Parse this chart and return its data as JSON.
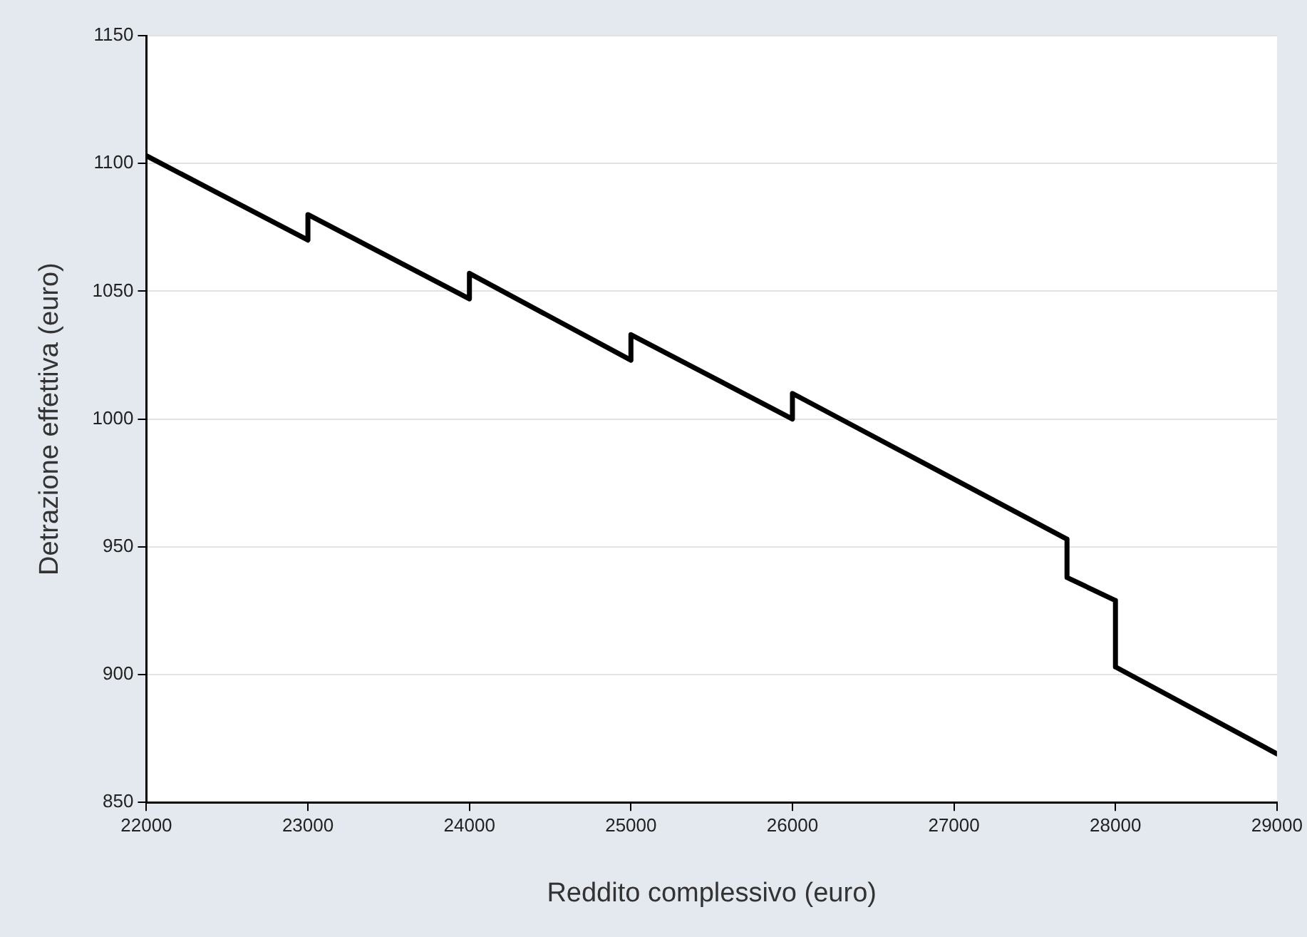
{
  "chart_data": {
    "type": "line",
    "xlabel": "Reddito complessivo (euro)",
    "ylabel": "Detrazione effettiva (euro)",
    "series": [
      {
        "color": "#000000",
        "x": [
          22000,
          23000,
          23000,
          24000,
          24000,
          25000,
          25000,
          26000,
          26000,
          27700,
          27700,
          28000,
          28000,
          29000
        ],
        "values": [
          1103,
          1070,
          1080,
          1047,
          1057,
          1023,
          1033,
          1000,
          1010,
          953,
          938,
          929,
          903,
          869
        ]
      }
    ],
    "xlim": [
      22000,
      29000
    ],
    "xticks": [
      22000,
      23000,
      24000,
      25000,
      26000,
      27000,
      28000,
      29000
    ],
    "ylim": [
      850,
      1150
    ],
    "yticks": [
      850,
      900,
      950,
      1000,
      1050,
      1100,
      1150
    ],
    "grid": "y",
    "legend": false,
    "marker": "none",
    "line_style": "solid"
  }
}
